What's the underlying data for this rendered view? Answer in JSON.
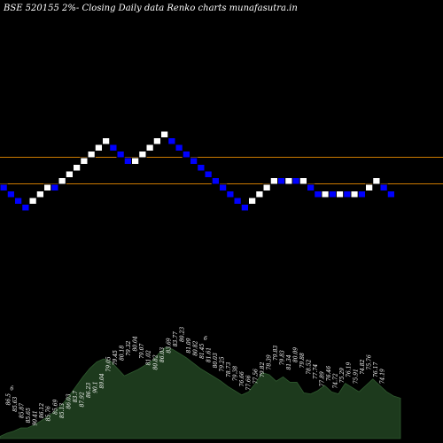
{
  "title": "BSE 520155 2%-  Closing Daily data  Renko  charts munafasutra.in",
  "colors": {
    "background": "#000000",
    "up_brick": "#ffffff",
    "down_brick": "#0000ff",
    "brick_outline": "#000000",
    "reference_line": "#cc7a00",
    "volume_fill": "#1d3a1d",
    "volume_stroke": "#2f5a2f",
    "label_color": "#ffffff"
  },
  "chart_data": {
    "type": "renko",
    "title": "BSE 520155 2%-  Closing Daily data  Renko  charts munafasutra.in",
    "brick_size_percent": 2,
    "bricks": [
      {
        "dir": "down",
        "level": 0
      },
      {
        "dir": "down",
        "level": -1
      },
      {
        "dir": "down",
        "level": -2
      },
      {
        "dir": "down",
        "level": -3
      },
      {
        "dir": "up",
        "level": -2
      },
      {
        "dir": "up",
        "level": -1
      },
      {
        "dir": "up",
        "level": 0
      },
      {
        "dir": "down",
        "level": 0
      },
      {
        "dir": "up",
        "level": 1
      },
      {
        "dir": "up",
        "level": 2
      },
      {
        "dir": "up",
        "level": 3
      },
      {
        "dir": "up",
        "level": 4
      },
      {
        "dir": "up",
        "level": 5
      },
      {
        "dir": "up",
        "level": 6
      },
      {
        "dir": "up",
        "level": 7
      },
      {
        "dir": "down",
        "level": 6
      },
      {
        "dir": "down",
        "level": 5
      },
      {
        "dir": "down",
        "level": 4
      },
      {
        "dir": "up",
        "level": 4
      },
      {
        "dir": "up",
        "level": 5
      },
      {
        "dir": "up",
        "level": 6
      },
      {
        "dir": "up",
        "level": 7
      },
      {
        "dir": "up",
        "level": 8
      },
      {
        "dir": "down",
        "level": 7
      },
      {
        "dir": "down",
        "level": 6
      },
      {
        "dir": "down",
        "level": 5
      },
      {
        "dir": "down",
        "level": 4
      },
      {
        "dir": "down",
        "level": 3
      },
      {
        "dir": "down",
        "level": 2
      },
      {
        "dir": "down",
        "level": 1
      },
      {
        "dir": "down",
        "level": 0
      },
      {
        "dir": "down",
        "level": -1
      },
      {
        "dir": "down",
        "level": -2
      },
      {
        "dir": "down",
        "level": -3
      },
      {
        "dir": "up",
        "level": -2
      },
      {
        "dir": "up",
        "level": -1
      },
      {
        "dir": "up",
        "level": 0
      },
      {
        "dir": "up",
        "level": 1
      },
      {
        "dir": "down",
        "level": 1
      },
      {
        "dir": "up",
        "level": 1
      },
      {
        "dir": "down",
        "level": 1
      },
      {
        "dir": "up",
        "level": 1
      },
      {
        "dir": "down",
        "level": 0
      },
      {
        "dir": "down",
        "level": -1
      },
      {
        "dir": "up",
        "level": -1
      },
      {
        "dir": "down",
        "level": -1
      },
      {
        "dir": "up",
        "level": -1
      },
      {
        "dir": "down",
        "level": -1
      },
      {
        "dir": "up",
        "level": -1
      },
      {
        "dir": "down",
        "level": -1
      },
      {
        "dir": "up",
        "level": 0
      },
      {
        "dir": "up",
        "level": 1
      },
      {
        "dir": "down",
        "level": 0
      },
      {
        "dir": "down",
        "level": -1
      }
    ],
    "reference_levels": [
      4,
      0
    ],
    "volume_profile": [
      2,
      5,
      7,
      10,
      10,
      13,
      17,
      21,
      26,
      32,
      40,
      49,
      58,
      66,
      72,
      75,
      73,
      66,
      59,
      62,
      65,
      69,
      73,
      80,
      86,
      84,
      80,
      76,
      71,
      66,
      62,
      58,
      54,
      49,
      45,
      41,
      44,
      52,
      62,
      60,
      54,
      58,
      53,
      53,
      43,
      42,
      45,
      50,
      44,
      42,
      52,
      48,
      44,
      50,
      56,
      50,
      44,
      40,
      38
    ],
    "labels": [
      {
        "text": "6",
        "index": 1,
        "level": 48
      },
      {
        "text": "86.5",
        "index": 1,
        "level": 32
      },
      {
        "text": "85.63",
        "index": 2,
        "level": 25
      },
      {
        "text": "85.87",
        "index": 3,
        "level": 18
      },
      {
        "text": "85.65",
        "index": 4,
        "level": 13
      },
      {
        "text": "90.41",
        "index": 5,
        "level": 10
      },
      {
        "text": "86.12",
        "index": 6,
        "level": 18
      },
      {
        "text": "85.76",
        "index": 7,
        "level": 15
      },
      {
        "text": "85.69",
        "index": 8,
        "level": 22
      },
      {
        "text": "85.13",
        "index": 9,
        "level": 18
      },
      {
        "text": "86.03",
        "index": 10,
        "level": 28
      },
      {
        "text": "83.7",
        "index": 11,
        "level": 35
      },
      {
        "text": "87.92",
        "index": 12,
        "level": 30
      },
      {
        "text": "86.23",
        "index": 13,
        "level": 40
      },
      {
        "text": "90.1",
        "index": 14,
        "level": 45
      },
      {
        "text": "89.04",
        "index": 15,
        "level": 50
      },
      {
        "text": "79.05",
        "index": 16,
        "level": 68
      },
      {
        "text": "79.45",
        "index": 17,
        "level": 75
      },
      {
        "text": "80.18",
        "index": 18,
        "level": 80
      },
      {
        "text": "79.32",
        "index": 19,
        "level": 85
      },
      {
        "text": "80.04",
        "index": 20,
        "level": 90
      },
      {
        "text": "79.07",
        "index": 21,
        "level": 82
      },
      {
        "text": "81.02",
        "index": 22,
        "level": 75
      },
      {
        "text": "80.82",
        "index": 23,
        "level": 70
      },
      {
        "text": "86.03",
        "index": 24,
        "level": 78
      },
      {
        "text": "83.69",
        "index": 25,
        "level": 88
      },
      {
        "text": "83.77",
        "index": 26,
        "level": 95
      },
      {
        "text": "80.23",
        "index": 27,
        "level": 100
      },
      {
        "text": "81.09",
        "index": 28,
        "level": 88
      },
      {
        "text": "80.82",
        "index": 29,
        "level": 85
      },
      {
        "text": "81.45",
        "index": 30,
        "level": 82
      },
      {
        "text": "6",
        "index": 30,
        "level": 102
      },
      {
        "text": "81.61",
        "index": 31,
        "level": 78
      },
      {
        "text": "80.03",
        "index": 32,
        "level": 72
      },
      {
        "text": "79.25",
        "index": 33,
        "level": 68
      },
      {
        "text": "78.73",
        "index": 34,
        "level": 62
      },
      {
        "text": "79.38",
        "index": 35,
        "level": 58
      },
      {
        "text": "76.66",
        "index": 36,
        "level": 52
      },
      {
        "text": "77.66",
        "index": 37,
        "level": 48
      },
      {
        "text": "77.56",
        "index": 38,
        "level": 55
      },
      {
        "text": "79.82",
        "index": 39,
        "level": 62
      },
      {
        "text": "78.39",
        "index": 40,
        "level": 70
      },
      {
        "text": "79.83",
        "index": 41,
        "level": 80
      },
      {
        "text": "79.83",
        "index": 42,
        "level": 75
      },
      {
        "text": "81.34",
        "index": 43,
        "level": 70
      },
      {
        "text": "80.09",
        "index": 44,
        "level": 78
      },
      {
        "text": "79.88",
        "index": 45,
        "level": 72
      },
      {
        "text": "78.52",
        "index": 46,
        "level": 65
      },
      {
        "text": "77.74",
        "index": 47,
        "level": 60
      },
      {
        "text": "77.89",
        "index": 48,
        "level": 52
      },
      {
        "text": "76.46",
        "index": 49,
        "level": 58
      },
      {
        "text": "74.72",
        "index": 50,
        "level": 50
      },
      {
        "text": "75.29",
        "index": 51,
        "level": 56
      },
      {
        "text": "76.19",
        "index": 52,
        "level": 62
      },
      {
        "text": "75.91",
        "index": 53,
        "level": 55
      },
      {
        "text": "74.82",
        "index": 54,
        "level": 65
      },
      {
        "text": "75.76",
        "index": 55,
        "level": 70
      },
      {
        "text": "76.17",
        "index": 56,
        "level": 62
      },
      {
        "text": "74.19",
        "index": 57,
        "level": 55
      }
    ]
  }
}
